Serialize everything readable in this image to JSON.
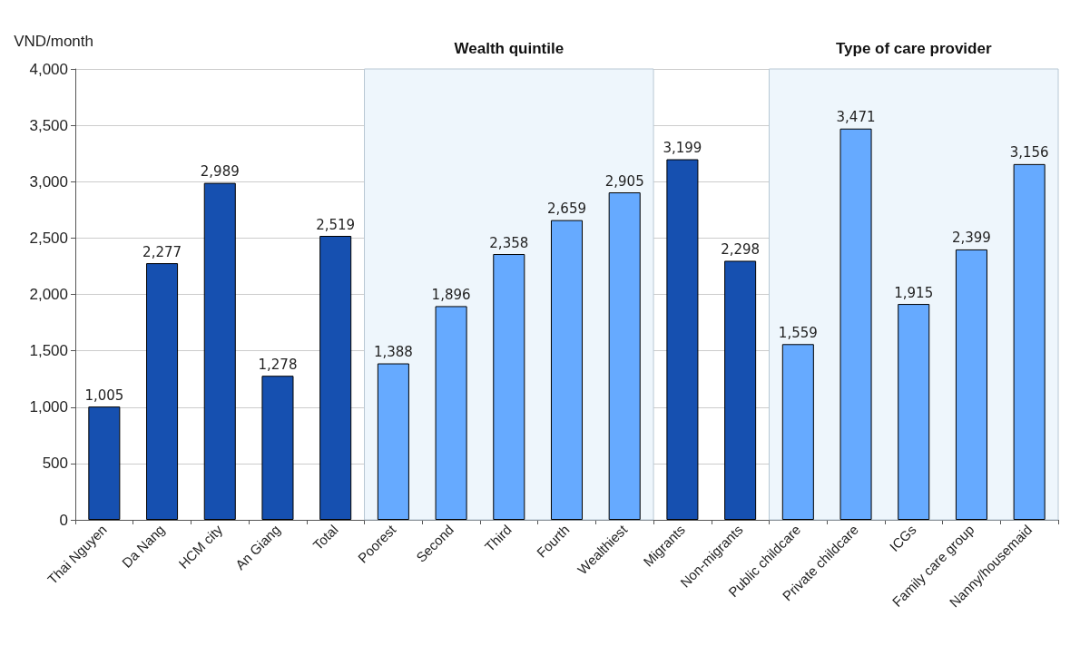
{
  "chart_data": {
    "type": "bar",
    "ylabel": "VND/month",
    "categories": [
      "Thai Nguyen",
      "Da Nang",
      "HCM city",
      "An Giang",
      "Total",
      "Poorest",
      "Second",
      "Third",
      "Fourth",
      "Wealthiest",
      "Migrants",
      "Non-migrants",
      "Public childcare",
      "Private childcare",
      "ICGs",
      "Family care group",
      "Nanny/housemaid"
    ],
    "values": [
      1005,
      2277,
      2989,
      1278,
      2519,
      1388,
      1896,
      2358,
      2659,
      2905,
      3199,
      2298,
      1559,
      3471,
      1915,
      2399,
      3156
    ],
    "colors": [
      "#1650b0",
      "#1650b0",
      "#1650b0",
      "#1650b0",
      "#1650b0",
      "#66aaff",
      "#66aaff",
      "#66aaff",
      "#66aaff",
      "#66aaff",
      "#1650b0",
      "#1650b0",
      "#66aaff",
      "#66aaff",
      "#66aaff",
      "#66aaff",
      "#66aaff"
    ],
    "value_labels": [
      "1,005",
      "2,277",
      "2,989",
      "1,278",
      "2,519",
      "1,388",
      "1,896",
      "2,358",
      "2,659",
      "2,905",
      "3,199",
      "2,298",
      "1,559",
      "3,471",
      "1,915",
      "2,399",
      "3,156"
    ],
    "ylim": [
      0,
      4000
    ],
    "yticks": [
      0,
      500,
      {
        "value": 1000,
        "label": "1,000"
      },
      {
        "value": 1500,
        "label": "1,500"
      },
      {
        "value": 2000,
        "label": "2,000"
      },
      {
        "value": 2500,
        "label": "2,500"
      },
      {
        "value": 3000,
        "label": "3,000"
      },
      {
        "value": 3500,
        "label": "3,500"
      },
      {
        "value": 4000,
        "label": "4,000"
      }
    ],
    "grid": "y",
    "bands": [
      {
        "axis": "x",
        "from": "Poorest",
        "to": "Wealthiest",
        "label": "Wealth quintile",
        "color": "#eef6fc"
      },
      {
        "axis": "x",
        "from": "Public childcare",
        "to": "Nanny/housemaid",
        "label": "Type of care provider",
        "color": "#eef6fc"
      }
    ]
  }
}
